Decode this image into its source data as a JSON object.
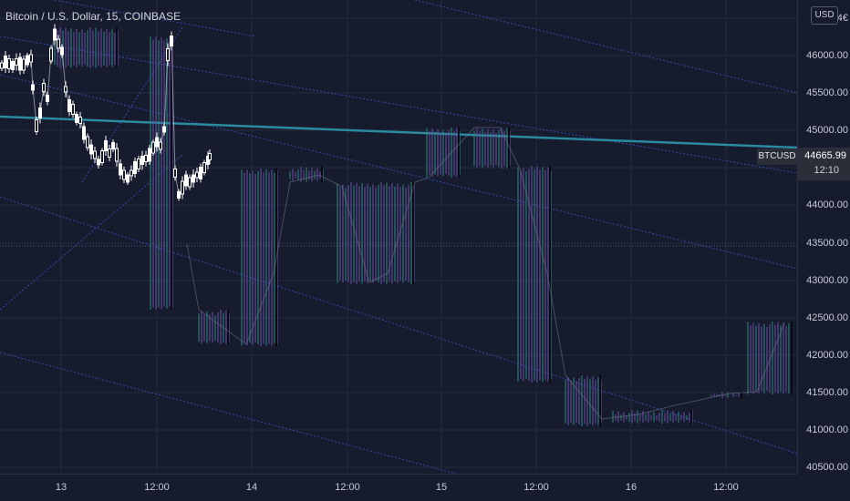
{
  "header": {
    "title": "Bitcoin / U.S. Dollar, 15, COINBASE",
    "currency_button": "USD"
  },
  "price_scale": {
    "ticks": [
      "46000.00",
      "45500.00",
      "45000.00",
      "44500.00",
      "44000.00",
      "43500.00",
      "43000.00",
      "42500.00",
      "42000.00",
      "41500.00",
      "41000.00",
      "40500.00"
    ],
    "top_partial_label": "4€"
  },
  "time_scale": {
    "ticks": [
      "13",
      "12:00",
      "14",
      "12:00",
      "15",
      "12:00",
      "16",
      "12:00"
    ]
  },
  "last_price": {
    "symbol": "BTCUSD",
    "value": "44665.99",
    "countdown": "12:10"
  },
  "colors": {
    "background": "#161b2e",
    "grid": "#242a40",
    "candle_body": "#ffffff",
    "regression_line": "#2a8aa0",
    "channel_lines": "#3d52c9",
    "overlay_violet": "#6b4fa8",
    "overlay_teal": "#2b8a7e"
  }
}
